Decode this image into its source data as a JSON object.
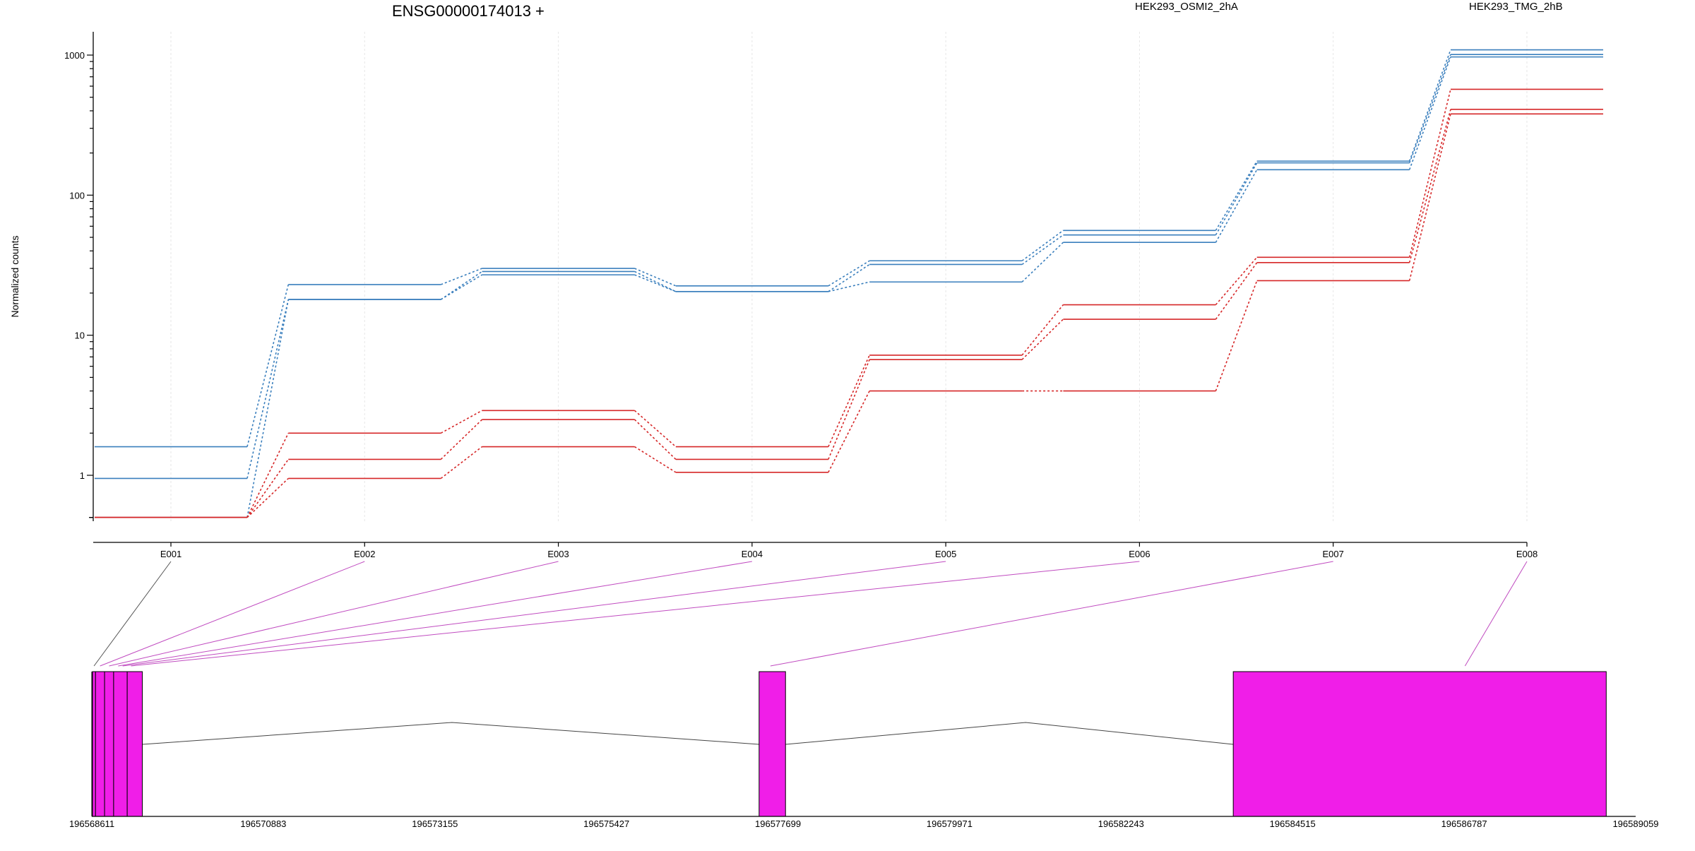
{
  "chart_data": {
    "type": "line",
    "title": "ENSG00000174013 +",
    "ylabel": "Normalized counts",
    "yscale": "log",
    "ylim": [
      0.5,
      1300
    ],
    "yticks": [
      {
        "value": 1,
        "label": "1"
      },
      {
        "value": 10,
        "label": "10"
      },
      {
        "value": 100,
        "label": "100"
      },
      {
        "value": 1000,
        "label": "1000"
      }
    ],
    "categories": [
      "E001",
      "E002",
      "E003",
      "E004",
      "E005",
      "E006",
      "E007",
      "E008"
    ],
    "grid": true,
    "legend_position": "top",
    "legend": [
      {
        "label": "HEK293_OSMI2_2hA",
        "color": "#d62728"
      },
      {
        "label": "HEK293_TMG_2hB",
        "color": "#3a7fbd"
      }
    ],
    "series": [
      {
        "group": "HEK293_TMG_2hB",
        "color": "#3a7fbd",
        "values": [
          1.6,
          23,
          30,
          22.5,
          34,
          56,
          175,
          1090
        ]
      },
      {
        "group": "HEK293_TMG_2hB",
        "color": "#3a7fbd",
        "values": [
          0.95,
          18,
          28.5,
          20.5,
          32,
          52,
          170,
          1010
        ]
      },
      {
        "group": "HEK293_TMG_2hB",
        "color": "#3a7fbd",
        "values": [
          0.5,
          18,
          27,
          20.5,
          24,
          46,
          152,
          970
        ]
      },
      {
        "group": "HEK293_OSMI2_2hA",
        "color": "#d62728",
        "values": [
          0.5,
          2.0,
          2.9,
          1.6,
          7.2,
          16.5,
          36,
          570
        ]
      },
      {
        "group": "HEK293_OSMI2_2hA",
        "color": "#d62728",
        "values": [
          0.5,
          1.3,
          2.5,
          1.3,
          6.7,
          13,
          33,
          410
        ]
      },
      {
        "group": "HEK293_OSMI2_2hA",
        "color": "#d62728",
        "values": [
          0.5,
          0.95,
          1.6,
          1.05,
          4.0,
          4.0,
          24.5,
          380
        ]
      }
    ],
    "gene_model": {
      "axis_ticks": [
        "196568611",
        "196570883",
        "196573155",
        "196575427",
        "196577699",
        "196579971",
        "196582243",
        "196584515",
        "196586787",
        "196589059"
      ],
      "range": [
        196568611,
        196589059
      ],
      "exon_color": "#f01ee8",
      "exons": [
        {
          "start": 196568620,
          "end": 196568660
        },
        {
          "start": 196568660,
          "end": 196568780
        },
        {
          "start": 196568780,
          "end": 196568900
        },
        {
          "start": 196568900,
          "end": 196569080
        },
        {
          "start": 196569080,
          "end": 196569280
        },
        {
          "start": 196577449,
          "end": 196577799
        },
        {
          "start": 196583729,
          "end": 196588669
        }
      ],
      "introns": [
        {
          "start": 196569280,
          "peak": 196573380,
          "end": 196577449
        },
        {
          "start": 196577799,
          "peak": 196580979,
          "end": 196583729
        }
      ],
      "connectors": [
        {
          "category": "E001",
          "genomic": 196568640,
          "color": "#555555"
        },
        {
          "category": "E002",
          "genomic": 196568720,
          "color": "#c04bc0"
        },
        {
          "category": "E003",
          "genomic": 196568840,
          "color": "#c04bc0"
        },
        {
          "category": "E004",
          "genomic": 196568960,
          "color": "#c04bc0"
        },
        {
          "category": "E005",
          "genomic": 196569020,
          "color": "#c04bc0"
        },
        {
          "category": "E006",
          "genomic": 196569130,
          "color": "#c04bc0"
        },
        {
          "category": "E007",
          "genomic": 196577599,
          "color": "#c04bc0"
        },
        {
          "category": "E008",
          "genomic": 196586799,
          "color": "#c04bc0"
        }
      ]
    }
  }
}
